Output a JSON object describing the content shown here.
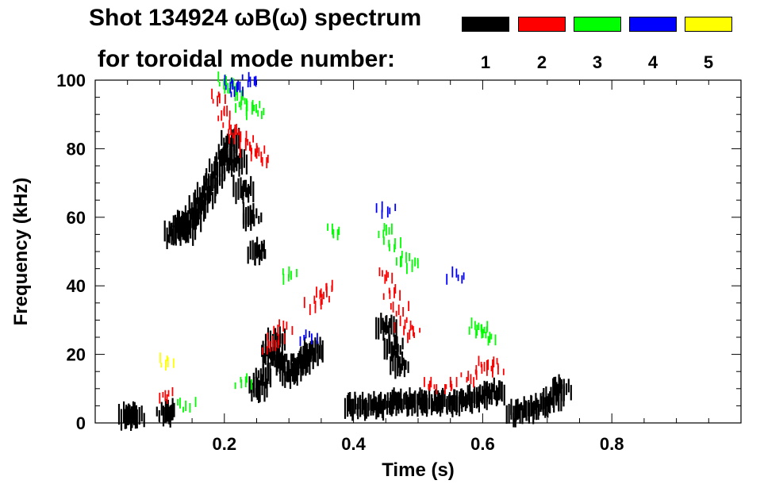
{
  "chart_data": {
    "type": "scatter",
    "title": "Shot 134924 ωB(ω) spectrum",
    "subtitle": "for toroidal mode number:",
    "xlabel": "Time (s)",
    "ylabel": "Frequency (kHz)",
    "xlim": [
      0.0,
      1.0
    ],
    "ylim": [
      0,
      100
    ],
    "xticks": [
      "0.2",
      "0.4",
      "0.6",
      "0.8"
    ],
    "xtick_values": [
      0.2,
      0.4,
      0.6,
      0.8
    ],
    "yticks": [
      "0",
      "20",
      "40",
      "60",
      "80",
      "100"
    ],
    "ytick_values": [
      0,
      20,
      40,
      60,
      80,
      100
    ],
    "legend": [
      {
        "label": "1",
        "color": "#000000"
      },
      {
        "label": "2",
        "color": "#ff0000"
      },
      {
        "label": "3",
        "color": "#00ff00"
      },
      {
        "label": "4",
        "color": "#0000ff"
      },
      {
        "label": "5",
        "color": "#ffff00"
      }
    ],
    "series": [
      {
        "name": "n=1",
        "color": "#000000",
        "points": [
          [
            0.12,
            55
          ],
          [
            0.13,
            58
          ],
          [
            0.14,
            56
          ],
          [
            0.15,
            60
          ],
          [
            0.16,
            63
          ],
          [
            0.17,
            66
          ],
          [
            0.18,
            70
          ],
          [
            0.19,
            74
          ],
          [
            0.2,
            78
          ],
          [
            0.21,
            82
          ],
          [
            0.22,
            76
          ],
          [
            0.23,
            68
          ],
          [
            0.24,
            60
          ],
          [
            0.25,
            50
          ],
          [
            0.25,
            10
          ],
          [
            0.26,
            14
          ],
          [
            0.27,
            20
          ],
          [
            0.28,
            24
          ],
          [
            0.29,
            18
          ],
          [
            0.3,
            14
          ],
          [
            0.31,
            16
          ],
          [
            0.32,
            18
          ],
          [
            0.33,
            20
          ],
          [
            0.34,
            21
          ],
          [
            0.4,
            5
          ],
          [
            0.42,
            5
          ],
          [
            0.44,
            5
          ],
          [
            0.46,
            6
          ],
          [
            0.48,
            6
          ],
          [
            0.5,
            6
          ],
          [
            0.52,
            6
          ],
          [
            0.54,
            6
          ],
          [
            0.56,
            6
          ],
          [
            0.58,
            7
          ],
          [
            0.6,
            8
          ],
          [
            0.62,
            9
          ],
          [
            0.45,
            28
          ],
          [
            0.46,
            22
          ],
          [
            0.47,
            17
          ],
          [
            0.65,
            3
          ],
          [
            0.67,
            4
          ],
          [
            0.69,
            5
          ],
          [
            0.71,
            7
          ],
          [
            0.72,
            10
          ],
          [
            0.05,
            2
          ],
          [
            0.06,
            2
          ],
          [
            0.11,
            3
          ]
        ]
      },
      {
        "name": "n=2",
        "color": "#ff0000",
        "points": [
          [
            0.19,
            95
          ],
          [
            0.2,
            90
          ],
          [
            0.21,
            86
          ],
          [
            0.22,
            84
          ],
          [
            0.23,
            82
          ],
          [
            0.24,
            80
          ],
          [
            0.25,
            79
          ],
          [
            0.26,
            77
          ],
          [
            0.27,
            22
          ],
          [
            0.28,
            24
          ],
          [
            0.29,
            28
          ],
          [
            0.34,
            34
          ],
          [
            0.35,
            37
          ],
          [
            0.36,
            39
          ],
          [
            0.45,
            43
          ],
          [
            0.46,
            38
          ],
          [
            0.47,
            33
          ],
          [
            0.48,
            29
          ],
          [
            0.49,
            26
          ],
          [
            0.52,
            11
          ],
          [
            0.55,
            11
          ],
          [
            0.58,
            13
          ],
          [
            0.6,
            16
          ],
          [
            0.61,
            17
          ],
          [
            0.62,
            16
          ],
          [
            0.11,
            8
          ]
        ]
      },
      {
        "name": "n=3",
        "color": "#00ff00",
        "points": [
          [
            0.2,
            100
          ],
          [
            0.21,
            98
          ],
          [
            0.22,
            96
          ],
          [
            0.23,
            93
          ],
          [
            0.24,
            92
          ],
          [
            0.25,
            91
          ],
          [
            0.3,
            43
          ],
          [
            0.37,
            56
          ],
          [
            0.45,
            56
          ],
          [
            0.46,
            52
          ],
          [
            0.48,
            48
          ],
          [
            0.49,
            46
          ],
          [
            0.59,
            28
          ],
          [
            0.6,
            27
          ],
          [
            0.61,
            25
          ],
          [
            0.23,
            12
          ],
          [
            0.14,
            5
          ]
        ]
      },
      {
        "name": "n=4",
        "color": "#0000ff",
        "points": [
          [
            0.21,
            99
          ],
          [
            0.22,
            97
          ],
          [
            0.24,
            100
          ],
          [
            0.33,
            25
          ],
          [
            0.45,
            62
          ],
          [
            0.56,
            43
          ]
        ]
      },
      {
        "name": "n=5",
        "color": "#ffff00",
        "points": [
          [
            0.11,
            18
          ]
        ]
      }
    ]
  }
}
